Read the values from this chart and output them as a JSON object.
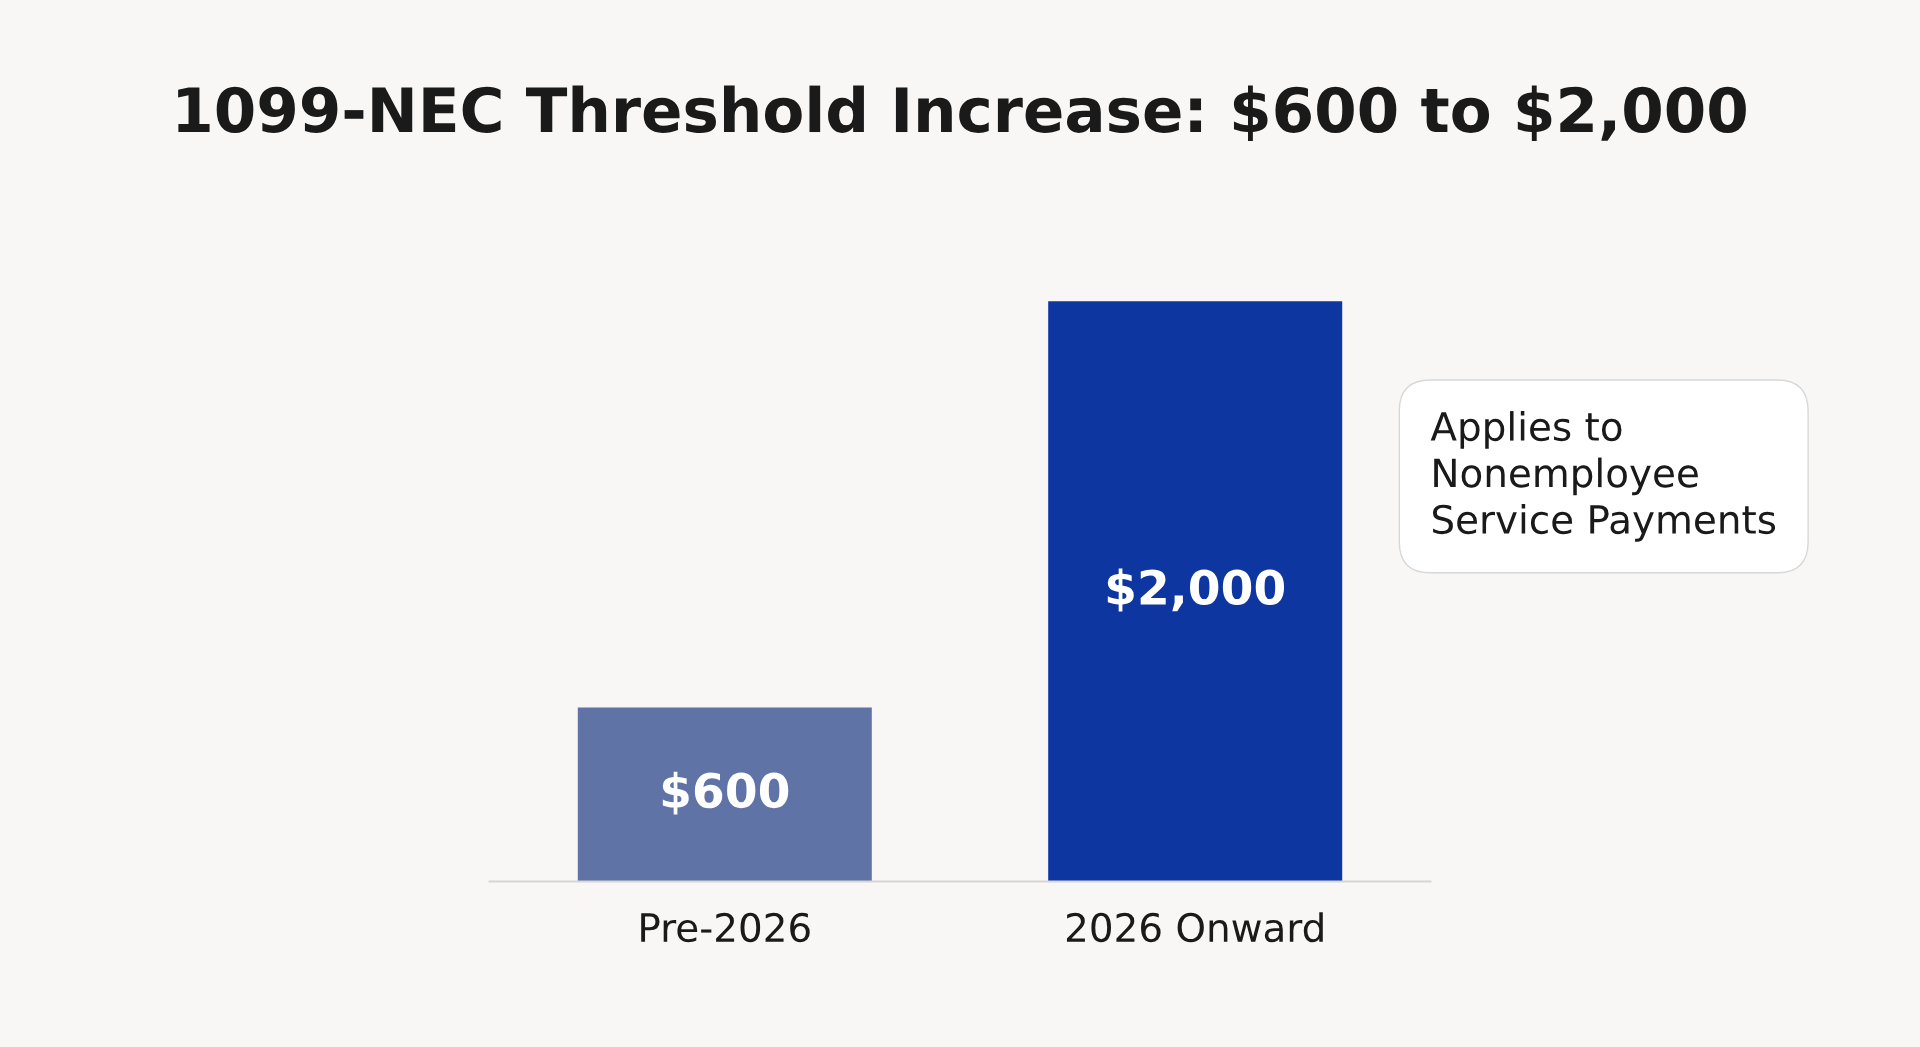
{
  "chart_data": {
    "type": "bar",
    "title": "1099-NEC Threshold Increase: $600 to $2,000",
    "categories": [
      "Pre-2026",
      "2026 Onward"
    ],
    "values": [
      600,
      2000
    ],
    "colors": [
      "#5f73a6",
      "#0d36a0"
    ],
    "value_labels": [
      "$600",
      "$2,000"
    ],
    "annotations": [
      "Applies to\nNonemployee\nService Payments"
    ],
    "grid": false,
    "legend": false
  }
}
